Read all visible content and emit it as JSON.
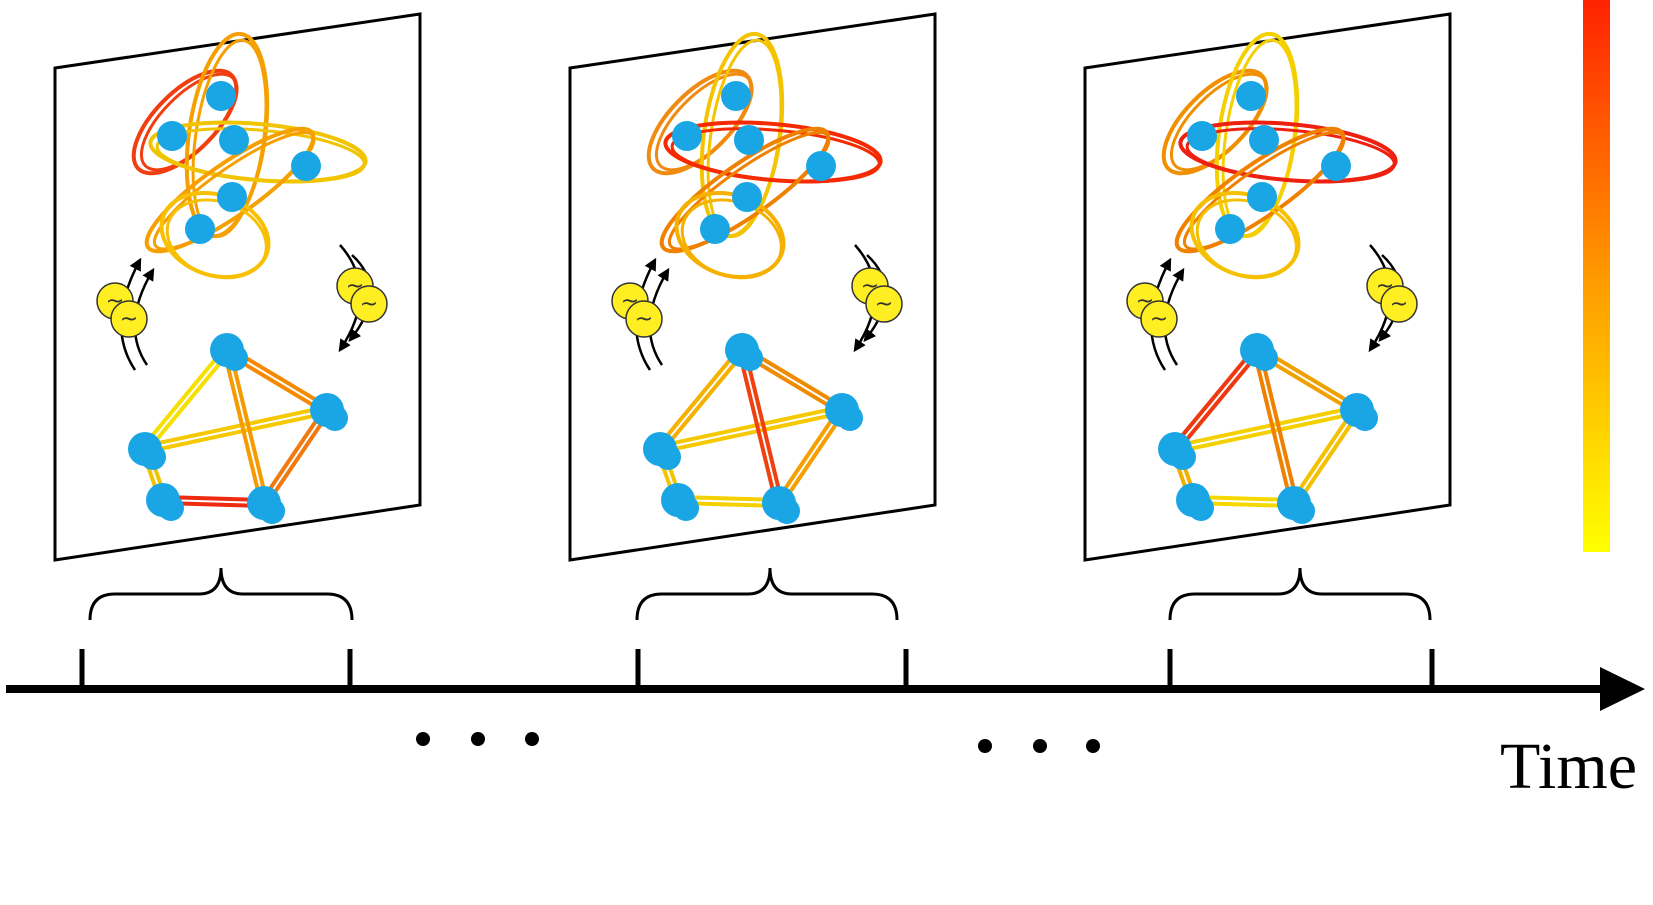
{
  "axis": {
    "label": "Time",
    "arrow_color": "#000000"
  },
  "ellipsis_glyph": "•",
  "oscillator_glyph": "~",
  "colorbar": {
    "top_color": "#ff2200",
    "mid_color": "#ff9900",
    "bottom_color": "#ffff00"
  },
  "node_color": "#1aa6e4",
  "frames": [
    {
      "name": "frame-1",
      "hyperedges": [
        "#f03e10",
        "#f5a000",
        "#f0c400",
        "#f5a000",
        "#f8c000"
      ],
      "edges": [
        "#f5e000",
        "#f58a00",
        "#f5c800",
        "#f59a00",
        "#f07a10",
        "#ee2a10",
        "#f0c400"
      ]
    },
    {
      "name": "frame-2",
      "hyperedges": [
        "#f08a10",
        "#f5c400",
        "#f52a00",
        "#f08000",
        "#f5b000"
      ],
      "edges": [
        "#f5b000",
        "#f08a00",
        "#f5c800",
        "#f04010",
        "#f5a000",
        "#f5d000",
        "#f5c400"
      ]
    },
    {
      "name": "frame-3",
      "hyperedges": [
        "#f09000",
        "#f5d000",
        "#ee2010",
        "#f08000",
        "#f5c000"
      ],
      "edges": [
        "#ee3810",
        "#f0a000",
        "#f5d000",
        "#f08000",
        "#f5c000",
        "#f5d800",
        "#f0b000"
      ]
    }
  ]
}
